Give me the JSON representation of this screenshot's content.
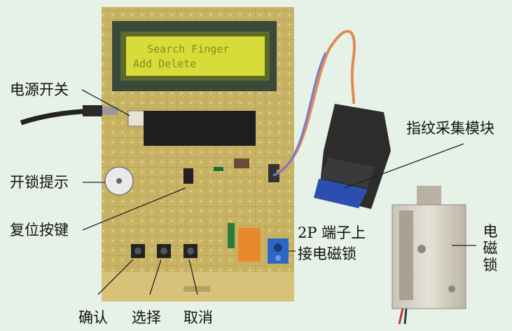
{
  "lcd": {
    "line1": "Search Finger",
    "line2": "Add      Delete"
  },
  "labels": {
    "power_switch": "电源开关",
    "unlock_indicator": "开锁提示",
    "reset_button": "复位按键",
    "fingerprint_module": "指纹采集模块",
    "terminal_line1": "2P 端子上",
    "terminal_line2": "接电磁锁",
    "solenoid_lock": [
      "电",
      "磁",
      "锁"
    ],
    "confirm": "确认",
    "select": "选择",
    "cancel": "取消"
  },
  "colors": {
    "background": "#e6f1e7",
    "pcb": "#cdb86c",
    "lcd_screen": "#d8dc38",
    "sensor": "#2b4fb0",
    "relay": "#e9892c"
  }
}
